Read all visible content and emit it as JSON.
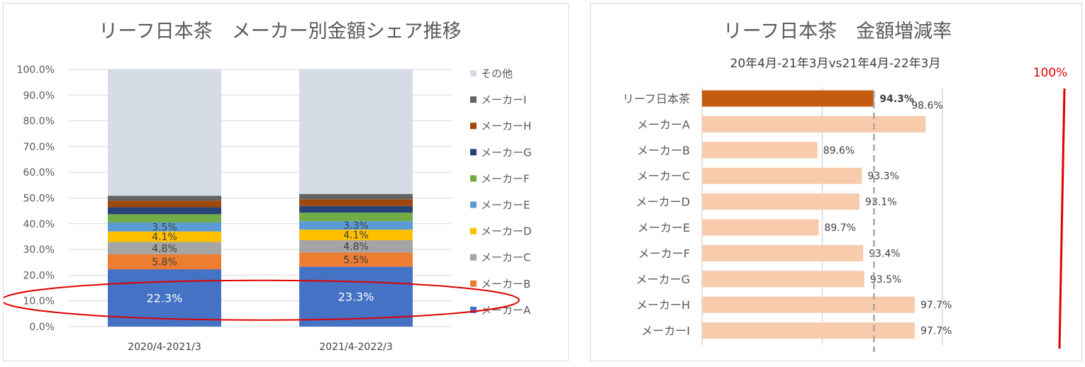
{
  "chart_data": [
    {
      "type": "stacked-bar-100",
      "title": "リーフ日本茶　メーカー別金額シェア推移",
      "categories": [
        "2020/4-2021/3",
        "2021/4-2022/3"
      ],
      "yticks": [
        "0.0%",
        "10.0%",
        "20.0%",
        "30.0%",
        "40.0%",
        "50.0%",
        "60.0%",
        "70.0%",
        "80.0%",
        "90.0%",
        "100.0%"
      ],
      "ylim": [
        0,
        100
      ],
      "legend_position": "right",
      "series": [
        {
          "name": "メーカーA",
          "color": "#4472c4",
          "values": [
            22.3,
            23.3
          ],
          "labels": [
            "22.3%",
            "23.3%"
          ],
          "label_color": "#ffffff"
        },
        {
          "name": "メーカーB",
          "color": "#ed7d31",
          "values": [
            5.8,
            5.5
          ],
          "labels": [
            "5.8%",
            "5.5%"
          ],
          "label_color": "#404040"
        },
        {
          "name": "メーカーC",
          "color": "#a5a5a5",
          "values": [
            4.8,
            4.8
          ],
          "labels": [
            "4.8%",
            "4.8%"
          ],
          "label_color": "#404040"
        },
        {
          "name": "メーカーD",
          "color": "#ffc000",
          "values": [
            4.1,
            4.1
          ],
          "labels": [
            "4.1%",
            "4.1%"
          ],
          "label_color": "#404040"
        },
        {
          "name": "メーカーE",
          "color": "#5b9bd5",
          "values": [
            3.5,
            3.3
          ],
          "labels": [
            "3.5%",
            "3.3%"
          ],
          "label_color": "#404040"
        },
        {
          "name": "メーカーF",
          "color": "#70ad47",
          "values": [
            3.2,
            3.3
          ],
          "labels": [
            "",
            ""
          ],
          "label_color": "#404040"
        },
        {
          "name": "メーカーG",
          "color": "#264478",
          "values": [
            2.7,
            2.6
          ],
          "labels": [
            "",
            ""
          ],
          "label_color": "#404040"
        },
        {
          "name": "メーカーH",
          "color": "#9e480e",
          "values": [
            2.6,
            2.6
          ],
          "labels": [
            "",
            ""
          ],
          "label_color": "#404040"
        },
        {
          "name": "メーカーI",
          "color": "#636363",
          "values": [
            1.9,
            2.1
          ],
          "labels": [
            "",
            ""
          ],
          "label_color": "#404040"
        },
        {
          "name": "その他",
          "color": "#d6dce5",
          "values": [
            49.1,
            48.4
          ],
          "labels": [
            "",
            ""
          ],
          "label_color": "#404040"
        }
      ],
      "annotation": {
        "shape": "ellipse",
        "color": "#e00000",
        "around": "メーカーA"
      }
    },
    {
      "type": "horizontal-bar",
      "title": "リーフ日本茶　金額増減率",
      "subtitle": "20年4月-21年3月vs21年4月-22年3月",
      "categories": [
        "リーフ日本茶",
        "メーカーA",
        "メーカーB",
        "メーカーC",
        "メーカーD",
        "メーカーE",
        "メーカーF",
        "メーカーG",
        "メーカーH",
        "メーカーI"
      ],
      "values": [
        94.3,
        98.6,
        89.6,
        93.3,
        93.1,
        89.7,
        93.4,
        93.5,
        97.7,
        97.7
      ],
      "labels": [
        "94.3%",
        "98.6%",
        "89.6%",
        "93.3%",
        "93.1%",
        "89.7%",
        "93.4%",
        "93.5%",
        "97.7%",
        "97.7%"
      ],
      "highlight_color": "#c55a11",
      "bar_color": "#f8cbad",
      "xlim": [
        80,
        100
      ],
      "gridlines": [
        80,
        90,
        100
      ],
      "reference_line": {
        "value": 94.3,
        "style": "dashed"
      },
      "annotation": {
        "text": "100%",
        "color": "#e00000"
      }
    }
  ]
}
